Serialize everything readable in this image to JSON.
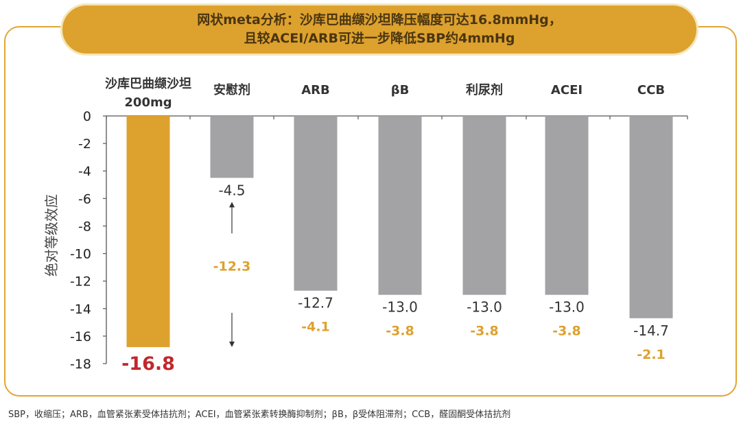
{
  "title": {
    "line1": "网状meta分析：沙库巴曲缬沙坦降压幅度可达16.8mmHg，",
    "line2": "且较ACEI/ARB可进一步降低SBP约4mmHg"
  },
  "footnote": "SBP，收缩压；ARB，血管紧张素受体拮抗剂；ACEI，血管紧张素转换酶抑制剂；βB，β受体阻滞剂；CCB，醛固酮受体拮抗剂",
  "colors": {
    "highlight_bar": "#DDA12E",
    "other_bar": "#A3A3A6",
    "difference_text": "#DDA12E",
    "highlight_value_text": "#C0282D",
    "frame": "#E1A533"
  },
  "chart_data": {
    "type": "bar",
    "ylabel": "绝对等级效应",
    "ylim": [
      -18,
      0
    ],
    "yticks": [
      "0",
      "-2",
      "-4",
      "-6",
      "-8",
      "-10",
      "-12",
      "-14",
      "-16",
      "-18"
    ],
    "grid": false,
    "categories": [
      [
        "沙库巴曲缬沙坦",
        "200mg"
      ],
      [
        "安慰剂"
      ],
      [
        "ARB"
      ],
      [
        "βB"
      ],
      [
        "利尿剂"
      ],
      [
        "ACEI"
      ],
      [
        "CCB"
      ]
    ],
    "values": [
      -16.8,
      -4.5,
      -12.7,
      -13.0,
      -13.0,
      -13.0,
      -14.7
    ],
    "value_labels": [
      "-16.8",
      "-4.5",
      "-12.7",
      "-13.0",
      "-13.0",
      "-13.0",
      "-14.7"
    ],
    "difference_labels": [
      "",
      "-12.3",
      "-4.1",
      "-3.8",
      "-3.8",
      "-3.8",
      "-2.1"
    ],
    "highlight_index": 0
  }
}
